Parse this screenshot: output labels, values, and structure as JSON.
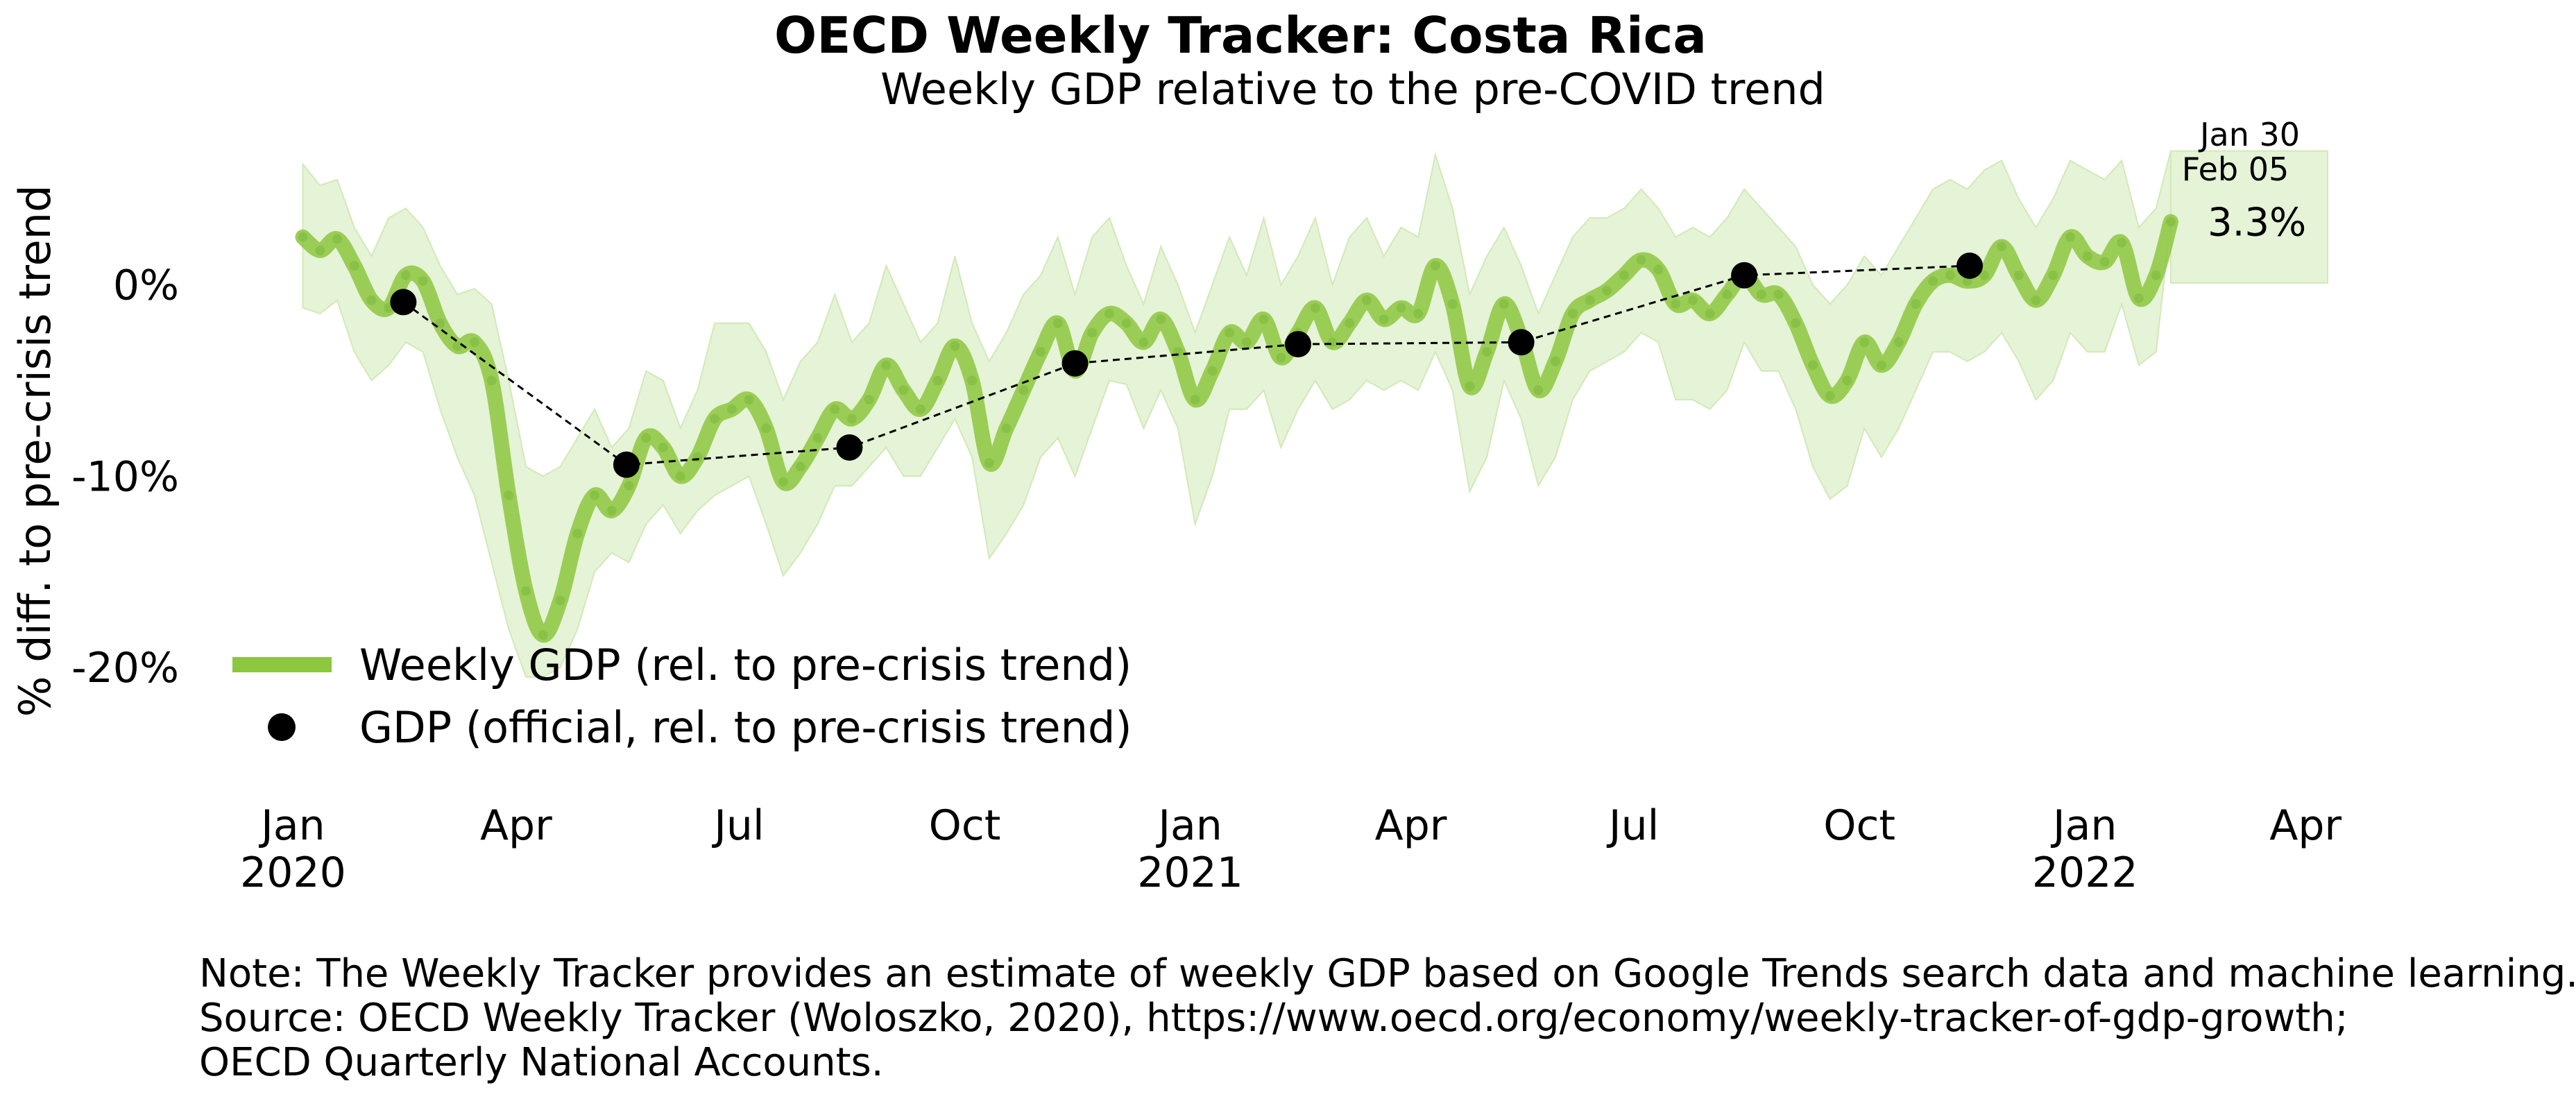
{
  "chart_data": {
    "type": "line",
    "title": "OECD Weekly Tracker: Costa Rica",
    "subtitle": "Weekly GDP relative to the pre-COVID trend",
    "ylabel": "% diff. to pre-crisis trend",
    "xlabel": "",
    "ylim": [
      -25,
      8
    ],
    "y_ticks": [
      {
        "value": 0,
        "label": "0%"
      },
      {
        "value": -10,
        "label": "-10%"
      },
      {
        "value": -20,
        "label": "-20%"
      }
    ],
    "x_ticks": [
      {
        "date": "2020-01-01",
        "label": "Jan",
        "year": "2020"
      },
      {
        "date": "2020-04-01",
        "label": "Apr",
        "year": ""
      },
      {
        "date": "2020-07-01",
        "label": "Jul",
        "year": ""
      },
      {
        "date": "2020-10-01",
        "label": "Oct",
        "year": ""
      },
      {
        "date": "2021-01-01",
        "label": "Jan",
        "year": "2021"
      },
      {
        "date": "2021-04-01",
        "label": "Apr",
        "year": ""
      },
      {
        "date": "2021-07-01",
        "label": "Jul",
        "year": ""
      },
      {
        "date": "2021-10-01",
        "label": "Oct",
        "year": ""
      },
      {
        "date": "2022-01-01",
        "label": "Jan",
        "year": "2022"
      },
      {
        "date": "2022-04-01",
        "label": "Apr",
        "year": ""
      }
    ],
    "xlim": [
      "2019-12-20",
      "2022-04-10"
    ],
    "grid": false,
    "legend_placement": "lower-left",
    "series": [
      {
        "name": "Weekly GDP (rel. to pre-crisis trend)",
        "kind": "line",
        "color": "#8dc63f",
        "band_color": "#e5f3d6",
        "points": [
          {
            "x": "2020-01-05",
            "y": 2.5
          },
          {
            "x": "2020-01-12",
            "y": 1.8
          },
          {
            "x": "2020-01-19",
            "y": 2.4
          },
          {
            "x": "2020-01-26",
            "y": 1.0
          },
          {
            "x": "2020-02-02",
            "y": -0.8
          },
          {
            "x": "2020-02-09",
            "y": -1.2
          },
          {
            "x": "2020-02-16",
            "y": 0.5
          },
          {
            "x": "2020-02-23",
            "y": 0.2
          },
          {
            "x": "2020-03-01",
            "y": -2.0
          },
          {
            "x": "2020-03-08",
            "y": -3.2
          },
          {
            "x": "2020-03-15",
            "y": -3.0
          },
          {
            "x": "2020-03-22",
            "y": -5.0
          },
          {
            "x": "2020-03-29",
            "y": -11.0
          },
          {
            "x": "2020-04-05",
            "y": -16.0
          },
          {
            "x": "2020-04-12",
            "y": -18.3
          },
          {
            "x": "2020-04-19",
            "y": -16.5
          },
          {
            "x": "2020-04-26",
            "y": -13.0
          },
          {
            "x": "2020-05-03",
            "y": -11.0
          },
          {
            "x": "2020-05-10",
            "y": -11.8
          },
          {
            "x": "2020-05-17",
            "y": -10.5
          },
          {
            "x": "2020-05-24",
            "y": -8.0
          },
          {
            "x": "2020-05-31",
            "y": -8.5
          },
          {
            "x": "2020-06-07",
            "y": -10.0
          },
          {
            "x": "2020-06-14",
            "y": -9.0
          },
          {
            "x": "2020-06-21",
            "y": -7.0
          },
          {
            "x": "2020-06-28",
            "y": -6.5
          },
          {
            "x": "2020-07-05",
            "y": -6.0
          },
          {
            "x": "2020-07-12",
            "y": -7.5
          },
          {
            "x": "2020-07-19",
            "y": -10.3
          },
          {
            "x": "2020-07-26",
            "y": -9.5
          },
          {
            "x": "2020-08-02",
            "y": -8.0
          },
          {
            "x": "2020-08-09",
            "y": -6.5
          },
          {
            "x": "2020-08-16",
            "y": -7.0
          },
          {
            "x": "2020-08-23",
            "y": -6.0
          },
          {
            "x": "2020-08-30",
            "y": -4.2
          },
          {
            "x": "2020-09-06",
            "y": -5.5
          },
          {
            "x": "2020-09-13",
            "y": -6.5
          },
          {
            "x": "2020-09-20",
            "y": -5.0
          },
          {
            "x": "2020-09-27",
            "y": -3.2
          },
          {
            "x": "2020-10-04",
            "y": -5.0
          },
          {
            "x": "2020-10-11",
            "y": -9.3
          },
          {
            "x": "2020-10-18",
            "y": -7.5
          },
          {
            "x": "2020-10-25",
            "y": -5.5
          },
          {
            "x": "2020-11-01",
            "y": -3.5
          },
          {
            "x": "2020-11-08",
            "y": -2.0
          },
          {
            "x": "2020-11-15",
            "y": -4.5
          },
          {
            "x": "2020-11-22",
            "y": -2.5
          },
          {
            "x": "2020-11-29",
            "y": -1.5
          },
          {
            "x": "2020-12-06",
            "y": -2.0
          },
          {
            "x": "2020-12-13",
            "y": -3.0
          },
          {
            "x": "2020-12-20",
            "y": -1.8
          },
          {
            "x": "2020-12-27",
            "y": -3.5
          },
          {
            "x": "2021-01-03",
            "y": -6.0
          },
          {
            "x": "2021-01-10",
            "y": -4.5
          },
          {
            "x": "2021-01-17",
            "y": -2.5
          },
          {
            "x": "2021-01-24",
            "y": -3.0
          },
          {
            "x": "2021-01-31",
            "y": -1.8
          },
          {
            "x": "2021-02-07",
            "y": -3.8
          },
          {
            "x": "2021-02-14",
            "y": -2.5
          },
          {
            "x": "2021-02-21",
            "y": -1.2
          },
          {
            "x": "2021-02-28",
            "y": -3.0
          },
          {
            "x": "2021-03-07",
            "y": -2.0
          },
          {
            "x": "2021-03-14",
            "y": -0.8
          },
          {
            "x": "2021-03-21",
            "y": -1.8
          },
          {
            "x": "2021-03-28",
            "y": -1.2
          },
          {
            "x": "2021-04-04",
            "y": -1.5
          },
          {
            "x": "2021-04-11",
            "y": 1.0
          },
          {
            "x": "2021-04-18",
            "y": -1.0
          },
          {
            "x": "2021-04-25",
            "y": -5.3
          },
          {
            "x": "2021-05-02",
            "y": -3.5
          },
          {
            "x": "2021-05-09",
            "y": -1.0
          },
          {
            "x": "2021-05-16",
            "y": -2.8
          },
          {
            "x": "2021-05-23",
            "y": -5.5
          },
          {
            "x": "2021-05-30",
            "y": -4.0
          },
          {
            "x": "2021-06-06",
            "y": -1.5
          },
          {
            "x": "2021-06-13",
            "y": -0.8
          },
          {
            "x": "2021-06-20",
            "y": -0.3
          },
          {
            "x": "2021-06-27",
            "y": 0.5
          },
          {
            "x": "2021-07-04",
            "y": 1.3
          },
          {
            "x": "2021-07-11",
            "y": 0.8
          },
          {
            "x": "2021-07-18",
            "y": -1.0
          },
          {
            "x": "2021-07-25",
            "y": -0.8
          },
          {
            "x": "2021-08-01",
            "y": -1.5
          },
          {
            "x": "2021-08-08",
            "y": -0.5
          },
          {
            "x": "2021-08-15",
            "y": 0.5
          },
          {
            "x": "2021-08-22",
            "y": -0.5
          },
          {
            "x": "2021-08-29",
            "y": -0.5
          },
          {
            "x": "2021-09-05",
            "y": -2.0
          },
          {
            "x": "2021-09-12",
            "y": -4.2
          },
          {
            "x": "2021-09-19",
            "y": -5.8
          },
          {
            "x": "2021-09-26",
            "y": -5.0
          },
          {
            "x": "2021-10-03",
            "y": -3.0
          },
          {
            "x": "2021-10-10",
            "y": -4.2
          },
          {
            "x": "2021-10-17",
            "y": -3.0
          },
          {
            "x": "2021-10-24",
            "y": -1.0
          },
          {
            "x": "2021-10-31",
            "y": 0.2
          },
          {
            "x": "2021-11-07",
            "y": 0.5
          },
          {
            "x": "2021-11-14",
            "y": 0.2
          },
          {
            "x": "2021-11-21",
            "y": 0.5
          },
          {
            "x": "2021-11-28",
            "y": 2.0
          },
          {
            "x": "2021-12-05",
            "y": 0.5
          },
          {
            "x": "2021-12-12",
            "y": -0.8
          },
          {
            "x": "2021-12-19",
            "y": 0.5
          },
          {
            "x": "2021-12-26",
            "y": 2.5
          },
          {
            "x": "2022-01-02",
            "y": 1.5
          },
          {
            "x": "2022-01-09",
            "y": 1.2
          },
          {
            "x": "2022-01-16",
            "y": 2.2
          },
          {
            "x": "2022-01-23",
            "y": -0.7
          },
          {
            "x": "2022-01-30",
            "y": 0.5
          },
          {
            "x": "2022-02-05",
            "y": 3.3
          }
        ],
        "band_lower": [
          -1.2,
          -1.5,
          -0.8,
          -3.5,
          -5.0,
          -4.2,
          -3.0,
          -3.5,
          -6.5,
          -9.0,
          -11.0,
          -14.5,
          -18.0,
          -20.5,
          -20.5,
          -20.0,
          -18.0,
          -15.0,
          -14.0,
          -14.5,
          -12.5,
          -11.5,
          -13.0,
          -11.8,
          -11.0,
          -10.5,
          -10.0,
          -12.5,
          -15.2,
          -14.0,
          -12.5,
          -10.5,
          -10.5,
          -9.5,
          -8.5,
          -10.0,
          -10.0,
          -8.5,
          -7.0,
          -9.0,
          -14.3,
          -13.0,
          -11.5,
          -9.0,
          -8.0,
          -10.0,
          -7.5,
          -5.0,
          -5.2,
          -7.5,
          -5.5,
          -7.5,
          -12.5,
          -10.0,
          -6.5,
          -6.5,
          -5.5,
          -8.5,
          -6.5,
          -5.0,
          -6.5,
          -6.0,
          -5.0,
          -5.5,
          -5.0,
          -5.5,
          -3.5,
          -5.5,
          -10.8,
          -9.0,
          -5.0,
          -7.0,
          -10.5,
          -9.0,
          -6.0,
          -4.5,
          -4.0,
          -3.5,
          -2.5,
          -3.0,
          -6.0,
          -6.0,
          -6.5,
          -5.5,
          -3.0,
          -4.5,
          -4.5,
          -6.5,
          -9.5,
          -11.2,
          -10.5,
          -7.5,
          -9.0,
          -7.5,
          -5.5,
          -3.5,
          -3.5,
          -4.0,
          -3.5,
          -2.5,
          -4.0,
          -6.0,
          -5.0,
          -2.5,
          -3.5,
          -3.5,
          -1.0,
          -4.2,
          -3.5,
          3.3
        ],
        "band_upper": [
          6.3,
          5.2,
          5.5,
          3.0,
          1.5,
          3.5,
          4.0,
          3.0,
          1.0,
          -0.5,
          -0.2,
          -1.0,
          -5.0,
          -9.5,
          -10.0,
          -9.5,
          -8.0,
          -6.5,
          -8.5,
          -7.5,
          -4.5,
          -5.0,
          -7.5,
          -5.5,
          -2.0,
          -2.0,
          -2.0,
          -3.5,
          -6.0,
          -4.0,
          -3.0,
          -0.5,
          -3.0,
          -2.0,
          1.0,
          -1.0,
          -3.0,
          -2.0,
          1.5,
          -2.0,
          -4.0,
          -2.5,
          -0.5,
          0.5,
          2.5,
          -0.5,
          2.5,
          3.5,
          1.0,
          -1.0,
          2.0,
          0.0,
          -2.5,
          0.0,
          2.5,
          0.5,
          3.5,
          0.0,
          1.5,
          3.5,
          0.0,
          2.5,
          3.5,
          1.5,
          3.0,
          2.5,
          6.8,
          4.0,
          -0.5,
          1.5,
          3.0,
          1.0,
          -1.5,
          0.5,
          2.5,
          3.5,
          3.5,
          4.0,
          5.0,
          4.0,
          2.5,
          3.0,
          2.5,
          3.5,
          5.0,
          4.0,
          3.0,
          2.0,
          0.0,
          -1.0,
          0.0,
          1.5,
          0.5,
          2.0,
          3.5,
          5.0,
          5.5,
          5.0,
          6.0,
          6.5,
          4.5,
          3.0,
          4.5,
          6.5,
          6.0,
          5.5,
          6.5,
          3.0,
          4.0,
          7.0
        ],
        "last_label_dates": [
          "Jan 30",
          "Feb 05"
        ],
        "last_value_label": "3.3%"
      },
      {
        "name": "GDP (official, rel. to pre-crisis trend)",
        "kind": "scatter",
        "color": "#000000",
        "points": [
          {
            "x": "2020-02-15",
            "y": -0.9
          },
          {
            "x": "2020-05-16",
            "y": -9.4
          },
          {
            "x": "2020-08-15",
            "y": -8.5
          },
          {
            "x": "2020-11-15",
            "y": -4.1
          },
          {
            "x": "2021-02-14",
            "y": -3.1
          },
          {
            "x": "2021-05-16",
            "y": -3.0
          },
          {
            "x": "2021-08-15",
            "y": 0.5
          },
          {
            "x": "2021-11-15",
            "y": 1.0
          }
        ]
      }
    ]
  },
  "notes": [
    "Note: The Weekly Tracker provides an estimate of weekly GDP based on Google Trends search data and machine learning.",
    "Source: OECD Weekly Tracker (Woloszko, 2020), https://www.oecd.org/economy/weekly-tracker-of-gdp-growth;",
    "OECD Quarterly National Accounts."
  ]
}
